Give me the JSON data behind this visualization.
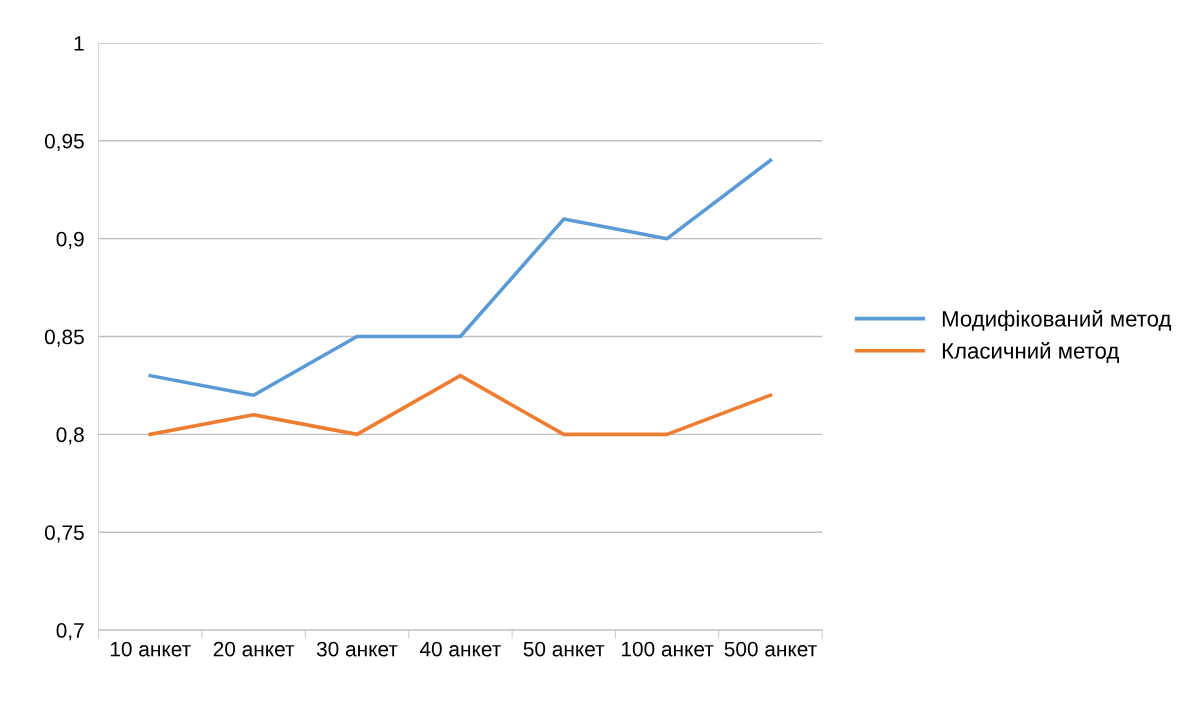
{
  "chart_data": {
    "type": "line",
    "categories": [
      "10 анкет",
      "20 анкет",
      "30 анкет",
      "40 анкет",
      "50 анкет",
      "100 анкет",
      "500 анкет"
    ],
    "series": [
      {
        "name": "Модифікований метод",
        "color": "#5b9bd5",
        "values": [
          0.83,
          0.82,
          0.85,
          0.85,
          0.91,
          0.9,
          0.94
        ]
      },
      {
        "name": "Класичний метод",
        "color": "#ed7d31",
        "values": [
          0.8,
          0.81,
          0.8,
          0.83,
          0.8,
          0.8,
          0.82
        ]
      }
    ],
    "ylim": [
      0.7,
      1
    ],
    "yticks": [
      {
        "value": 0.7,
        "label": "0,7"
      },
      {
        "value": 0.75,
        "label": "0,75"
      },
      {
        "value": 0.8,
        "label": "0,8"
      },
      {
        "value": 0.85,
        "label": "0,85"
      },
      {
        "value": 0.9,
        "label": "0,9"
      },
      {
        "value": 0.95,
        "label": "0,95"
      },
      {
        "value": 1,
        "label": "1"
      }
    ],
    "grid": "y",
    "legend": "right",
    "marker": "none",
    "line_style": "solid"
  }
}
